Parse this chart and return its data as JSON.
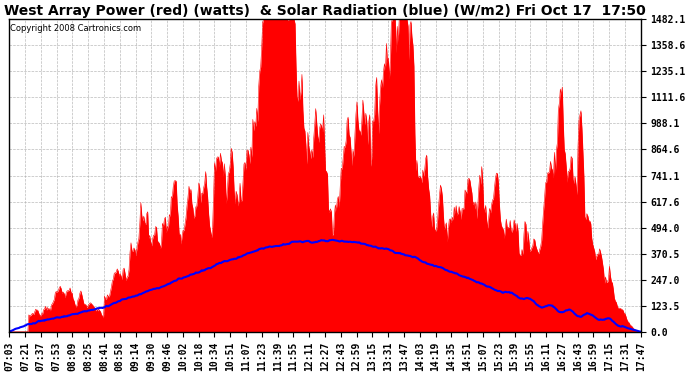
{
  "title": "West Array Power (red) (watts)  & Solar Radiation (blue) (W/m2) Fri Oct 17  17:50",
  "copyright": "Copyright 2008 Cartronics.com",
  "background_color": "#ffffff",
  "plot_bg_color": "#ffffff",
  "grid_color": "#aaaaaa",
  "y_max": 1482.1,
  "y_min": 0.0,
  "y_ticks": [
    0.0,
    123.5,
    247.0,
    370.5,
    494.0,
    617.6,
    741.1,
    864.6,
    988.1,
    1111.6,
    1235.1,
    1358.6,
    1482.1
  ],
  "x_labels": [
    "07:03",
    "07:21",
    "07:37",
    "07:53",
    "08:09",
    "08:25",
    "08:41",
    "08:58",
    "09:14",
    "09:30",
    "09:46",
    "10:02",
    "10:18",
    "10:34",
    "10:51",
    "11:07",
    "11:23",
    "11:39",
    "11:55",
    "12:11",
    "12:27",
    "12:43",
    "12:59",
    "13:15",
    "13:31",
    "13:47",
    "14:03",
    "14:19",
    "14:35",
    "14:51",
    "15:07",
    "15:23",
    "15:39",
    "15:55",
    "16:11",
    "16:27",
    "16:43",
    "16:59",
    "17:15",
    "17:31",
    "17:47"
  ],
  "power_color": "#ff0000",
  "radiation_color": "#0000ff",
  "title_fontsize": 10,
  "tick_fontsize": 7,
  "power_data": [],
  "radiation_data": []
}
